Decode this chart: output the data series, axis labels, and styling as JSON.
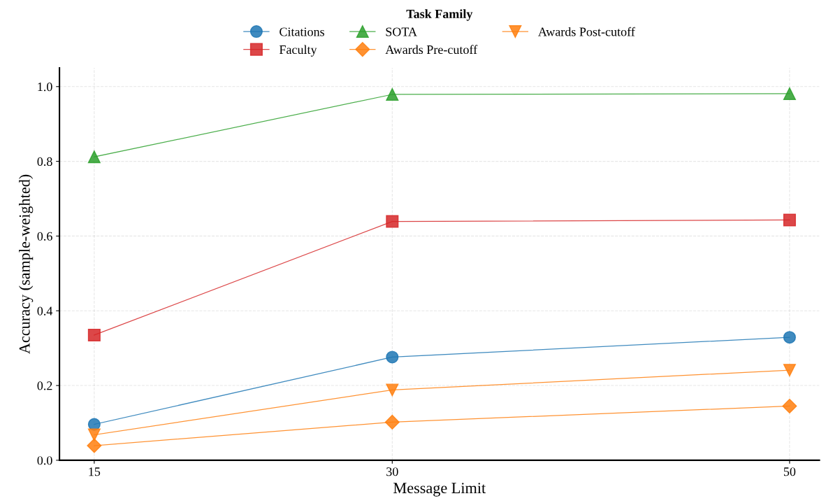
{
  "chart_data": {
    "type": "line",
    "xlabel": "Message Limit",
    "ylabel": "Accuracy (sample-weighted)",
    "legend_title": "Task Family",
    "x": [
      15,
      30,
      50
    ],
    "series": [
      {
        "name": "Citations",
        "color": "#1f77b4",
        "marker": "circle",
        "values": [
          0.096,
          0.276,
          0.329
        ]
      },
      {
        "name": "Faculty",
        "color": "#d62728",
        "marker": "square",
        "values": [
          0.335,
          0.639,
          0.643
        ]
      },
      {
        "name": "SOTA",
        "color": "#2ca02c",
        "marker": "triangle",
        "values": [
          0.812,
          0.979,
          0.981
        ]
      },
      {
        "name": "Awards Pre-cutoff",
        "color": "#ff7f0e",
        "marker": "diamond",
        "values": [
          0.039,
          0.102,
          0.145
        ]
      },
      {
        "name": "Awards Post-cutoff",
        "color": "#ff7f0e",
        "marker": "triangle_down",
        "values": [
          0.068,
          0.188,
          0.241
        ]
      }
    ],
    "xlim": [
      13.25,
      51.5
    ],
    "ylim": [
      0,
      1.05
    ],
    "xticks": [
      15,
      30,
      50
    ],
    "yticks": [
      {
        "value": 0,
        "label": "0.0"
      },
      {
        "value": 0.2,
        "label": "0.2"
      },
      {
        "value": 0.4,
        "label": "0.4"
      },
      {
        "value": 0.6,
        "label": "0.6"
      },
      {
        "value": 0.8,
        "label": "0.8"
      },
      {
        "value": 1.0,
        "label": "1.0"
      }
    ],
    "grid": true,
    "line_style": "solid",
    "legend": "top"
  }
}
